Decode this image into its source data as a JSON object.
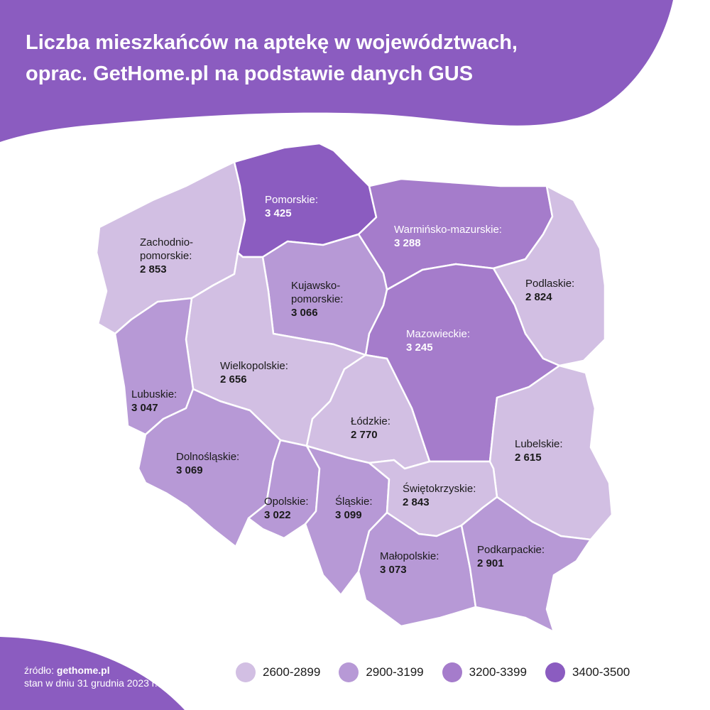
{
  "title": {
    "line1": "Liczba mieszkańców na aptekę w województwach,",
    "line2": "oprac. GetHome.pl na podstawie danych GUS"
  },
  "colors": {
    "brand": "#8b5cc0",
    "c1": "#d2bfe3",
    "c2": "#b799d6",
    "c3": "#a57ccb",
    "c4": "#8b5cc0"
  },
  "regions": [
    {
      "key": "zach",
      "name": "Zachodnio-pomorskie:",
      "name_lines": [
        "Zachodnio-",
        "pomorskie:"
      ],
      "value": "2 853",
      "class": "c1"
    },
    {
      "key": "pom",
      "name": "Pomorskie:",
      "name_lines": [
        "Pomorskie:"
      ],
      "value": "3 425",
      "class": "c4"
    },
    {
      "key": "warm",
      "name": "Warmińsko-mazurskie:",
      "name_lines": [
        "Warmińsko-mazurskie:"
      ],
      "value": "3 288",
      "class": "c3"
    },
    {
      "key": "podl",
      "name": "Podlaskie:",
      "name_lines": [
        "Podlaskie:"
      ],
      "value": "2 824",
      "class": "c1"
    },
    {
      "key": "kuj",
      "name": "Kujawsko-pomorskie:",
      "name_lines": [
        "Kujawsko-",
        "pomorskie:"
      ],
      "value": "3 066",
      "class": "c2"
    },
    {
      "key": "maz",
      "name": "Mazowieckie:",
      "name_lines": [
        "Mazowieckie:"
      ],
      "value": "3 245",
      "class": "c3"
    },
    {
      "key": "wlkp",
      "name": "Wielkopolskie:",
      "name_lines": [
        "Wielkopolskie:"
      ],
      "value": "2 656",
      "class": "c1"
    },
    {
      "key": "lubu",
      "name": "Lubuskie:",
      "name_lines": [
        "Lubuskie:"
      ],
      "value": "3 047",
      "class": "c2"
    },
    {
      "key": "lodz",
      "name": "Łódzkie:",
      "name_lines": [
        "Łódzkie:"
      ],
      "value": "2 770",
      "class": "c1"
    },
    {
      "key": "lube",
      "name": "Lubelskie:",
      "name_lines": [
        "Lubelskie:"
      ],
      "value": "2 615",
      "class": "c1"
    },
    {
      "key": "doln",
      "name": "Dolnośląskie:",
      "name_lines": [
        "Dolnośląskie:"
      ],
      "value": "3 069",
      "class": "c2"
    },
    {
      "key": "opol",
      "name": "Opolskie:",
      "name_lines": [
        "Opolskie:"
      ],
      "value": "3 022",
      "class": "c2"
    },
    {
      "key": "slas",
      "name": "Śląskie:",
      "name_lines": [
        "Śląskie:"
      ],
      "value": "3 099",
      "class": "c2"
    },
    {
      "key": "swie",
      "name": "Świętokrzyskie:",
      "name_lines": [
        "Świętokrzyskie:"
      ],
      "value": "2 843",
      "class": "c1"
    },
    {
      "key": "malo",
      "name": "Małopolskie:",
      "name_lines": [
        "Małopolskie:"
      ],
      "value": "3 073",
      "class": "c2"
    },
    {
      "key": "podk",
      "name": "Podkarpackie:",
      "name_lines": [
        "Podkarpackie:"
      ],
      "value": "2 901",
      "class": "c2"
    }
  ],
  "source": {
    "prefix": "źródło: ",
    "site": "gethome.pl",
    "date": "stan w dniu 31 grudnia 2023 r."
  },
  "legend": [
    {
      "label": "2600-2899",
      "color": "#d2bfe3"
    },
    {
      "label": "2900-3199",
      "color": "#b799d6"
    },
    {
      "label": "3200-3399",
      "color": "#a57ccb"
    },
    {
      "label": "3400-3500",
      "color": "#8b5cc0"
    }
  ]
}
